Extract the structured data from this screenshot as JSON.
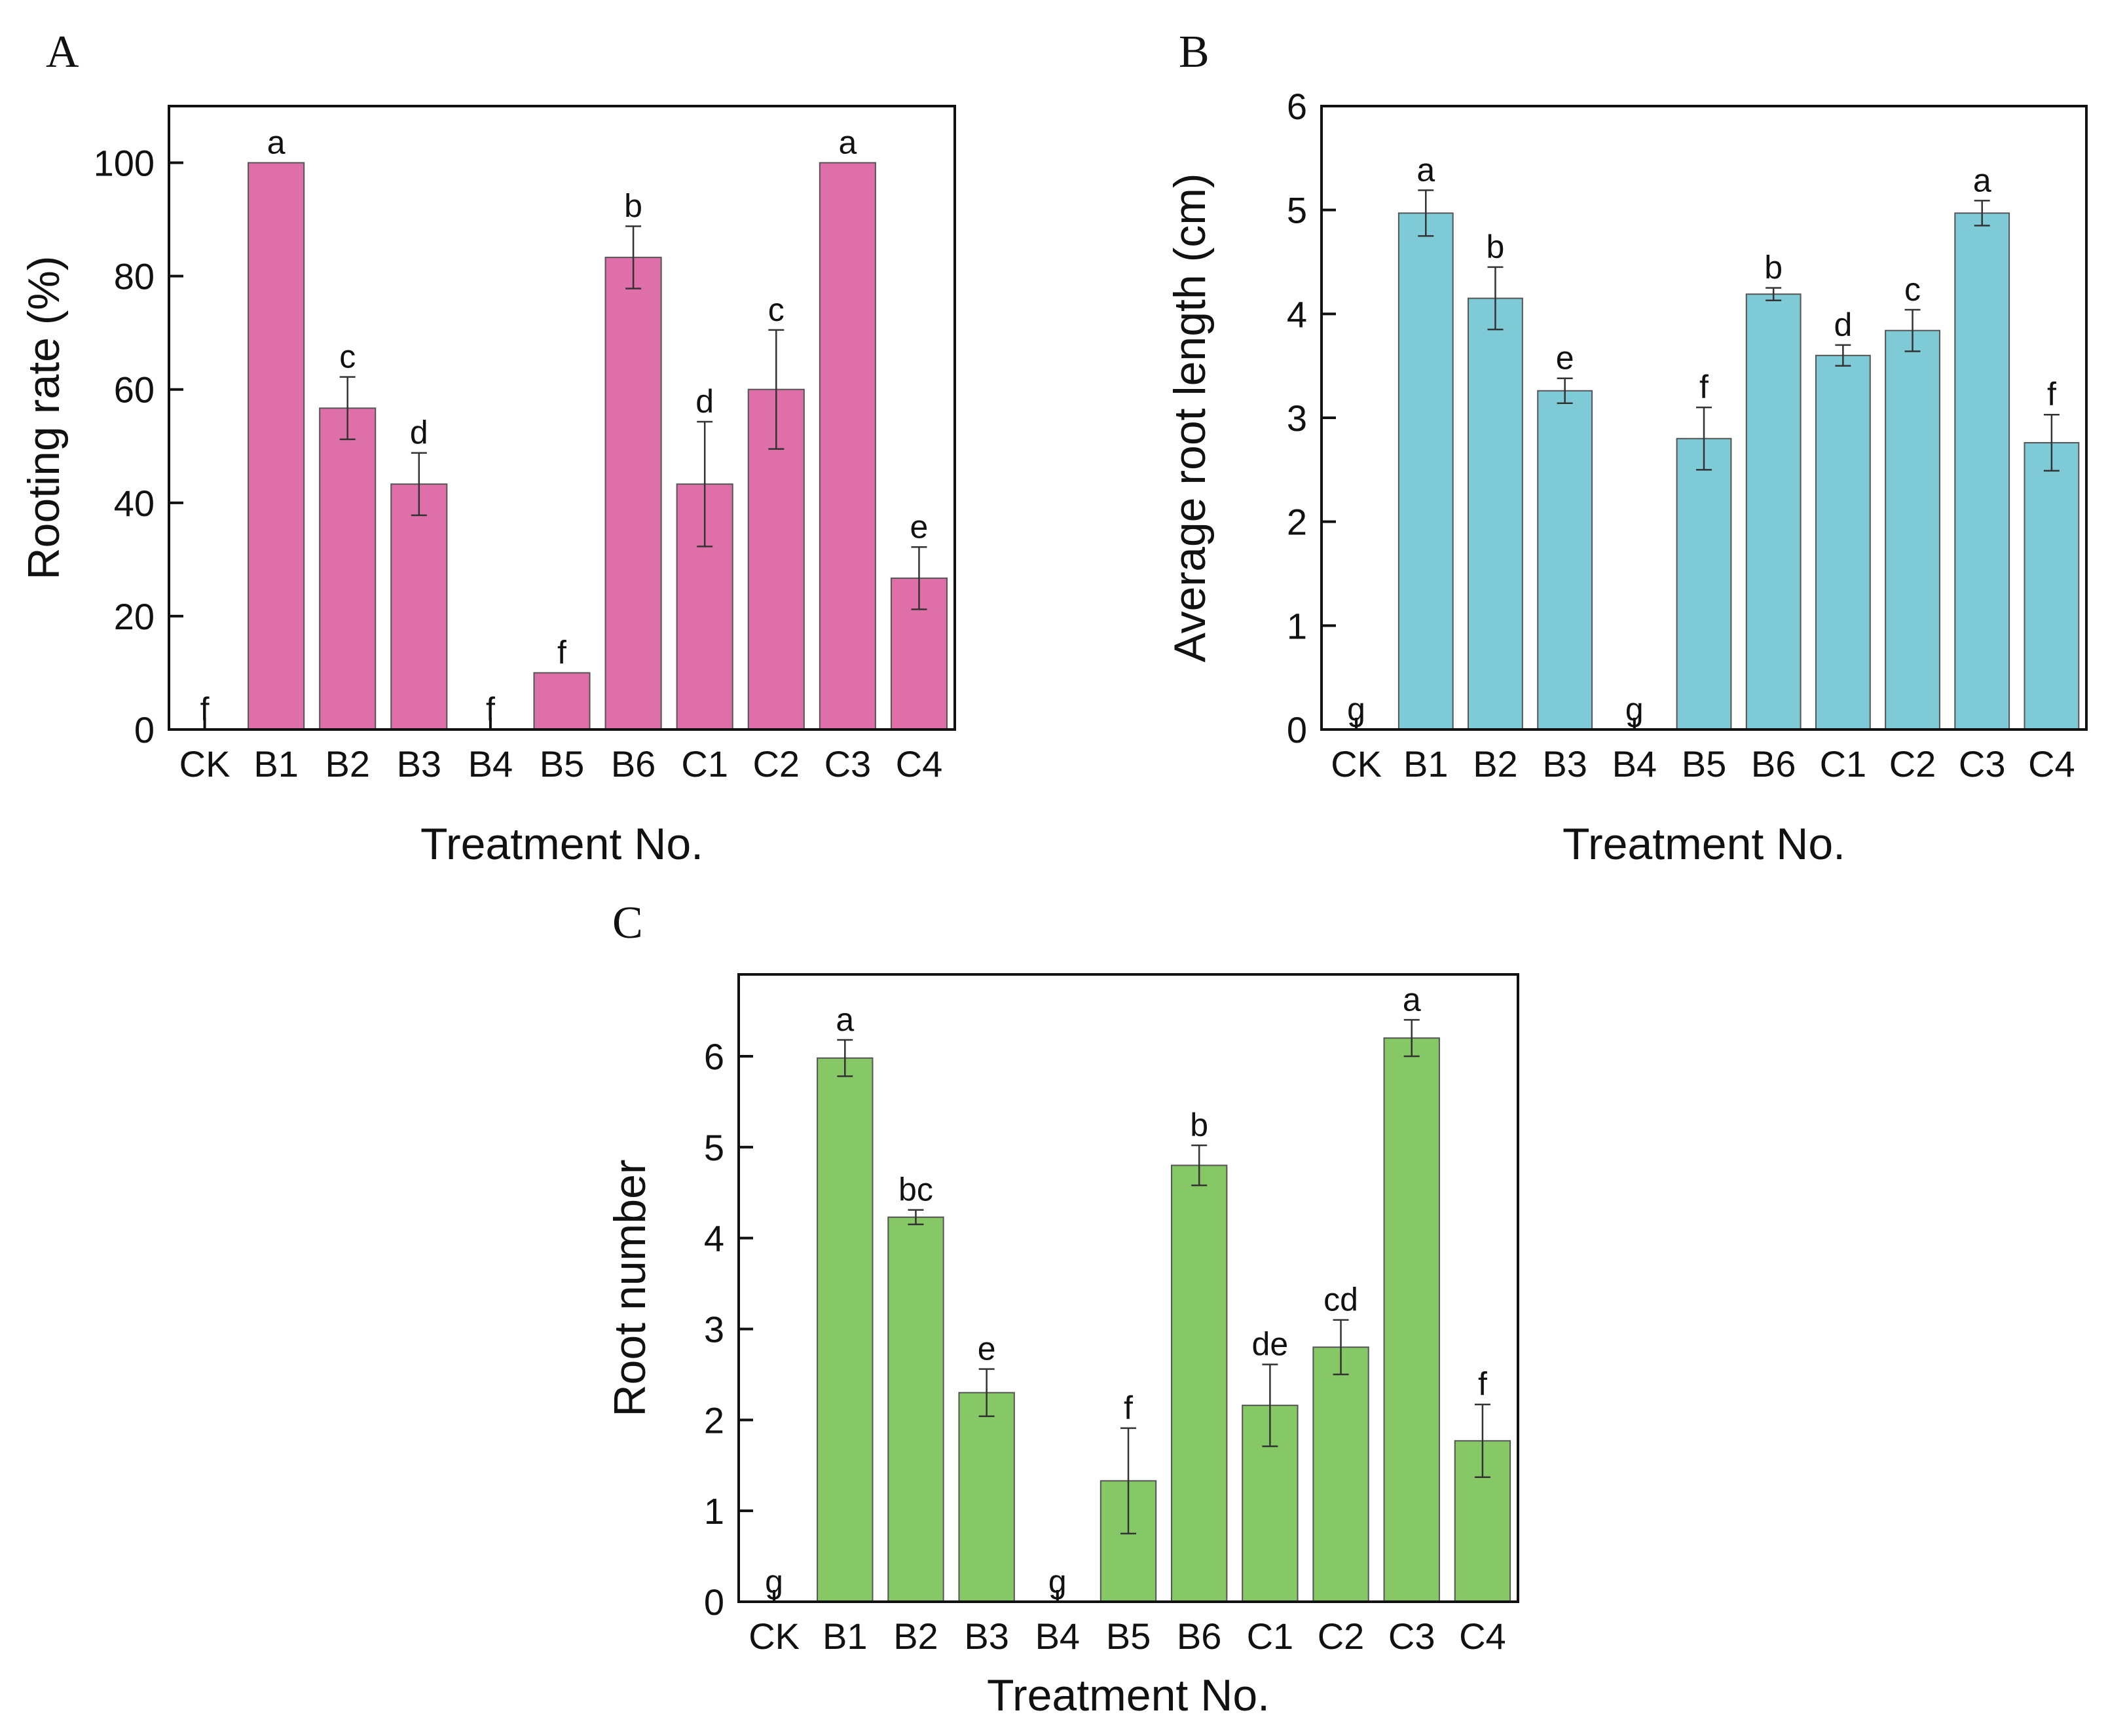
{
  "chart_data": [
    {
      "panel_label": "A",
      "type": "bar",
      "xlabel": "Treatment No.",
      "ylabel": "Rooting rate (%)",
      "ylim": [
        0,
        110
      ],
      "yticks": [
        "0",
        "20",
        "40",
        "60",
        "80",
        "100"
      ],
      "bar_color": "#df6fa8",
      "categories": [
        "CK",
        "B1",
        "B2",
        "B3",
        "B4",
        "B5",
        "B6",
        "C1",
        "C2",
        "C3",
        "C4"
      ],
      "values": [
        0,
        100,
        56.7,
        43.3,
        0,
        10,
        83.3,
        43.3,
        60,
        100,
        26.7
      ],
      "errors": [
        0,
        0,
        5.5,
        5.5,
        0,
        0,
        5.5,
        11,
        10.5,
        0,
        5.5
      ],
      "significance": [
        "f",
        "a",
        "c",
        "d",
        "f",
        "f",
        "b",
        "d",
        "c",
        "a",
        "e"
      ]
    },
    {
      "panel_label": "B",
      "type": "bar",
      "xlabel": "Treatment No.",
      "ylabel": "Average root length (cm)",
      "ylim": [
        0,
        6
      ],
      "yticks": [
        "0",
        "1",
        "2",
        "3",
        "4",
        "5",
        "6"
      ],
      "bar_color": "#7ecad6",
      "categories": [
        "CK",
        "B1",
        "B2",
        "B3",
        "B4",
        "B5",
        "B6",
        "C1",
        "C2",
        "C3",
        "C4"
      ],
      "values": [
        0,
        4.97,
        4.15,
        3.26,
        0,
        2.8,
        4.19,
        3.6,
        3.84,
        4.97,
        2.76
      ],
      "errors": [
        0,
        0.22,
        0.3,
        0.12,
        0,
        0.3,
        0.06,
        0.1,
        0.2,
        0.12,
        0.27
      ],
      "significance": [
        "g",
        "a",
        "b",
        "e",
        "g",
        "f",
        "b",
        "d",
        "c",
        "a",
        "f"
      ]
    },
    {
      "panel_label": "C",
      "type": "bar",
      "xlabel": "Treatment No.",
      "ylabel": "Root number",
      "ylim": [
        0,
        6.9
      ],
      "yticks": [
        "0",
        "1",
        "2",
        "3",
        "4",
        "5",
        "6"
      ],
      "bar_color": "#86c766",
      "categories": [
        "CK",
        "B1",
        "B2",
        "B3",
        "B4",
        "B5",
        "B6",
        "C1",
        "C2",
        "C3",
        "C4"
      ],
      "values": [
        0,
        5.98,
        4.23,
        2.3,
        0,
        1.33,
        4.8,
        2.16,
        2.8,
        6.2,
        1.77
      ],
      "errors": [
        0,
        0.2,
        0.08,
        0.26,
        0,
        0.58,
        0.22,
        0.45,
        0.3,
        0.2,
        0.4
      ],
      "significance": [
        "g",
        "a",
        "bc",
        "e",
        "g",
        "f",
        "b",
        "de",
        "cd",
        "a",
        "f"
      ]
    }
  ]
}
